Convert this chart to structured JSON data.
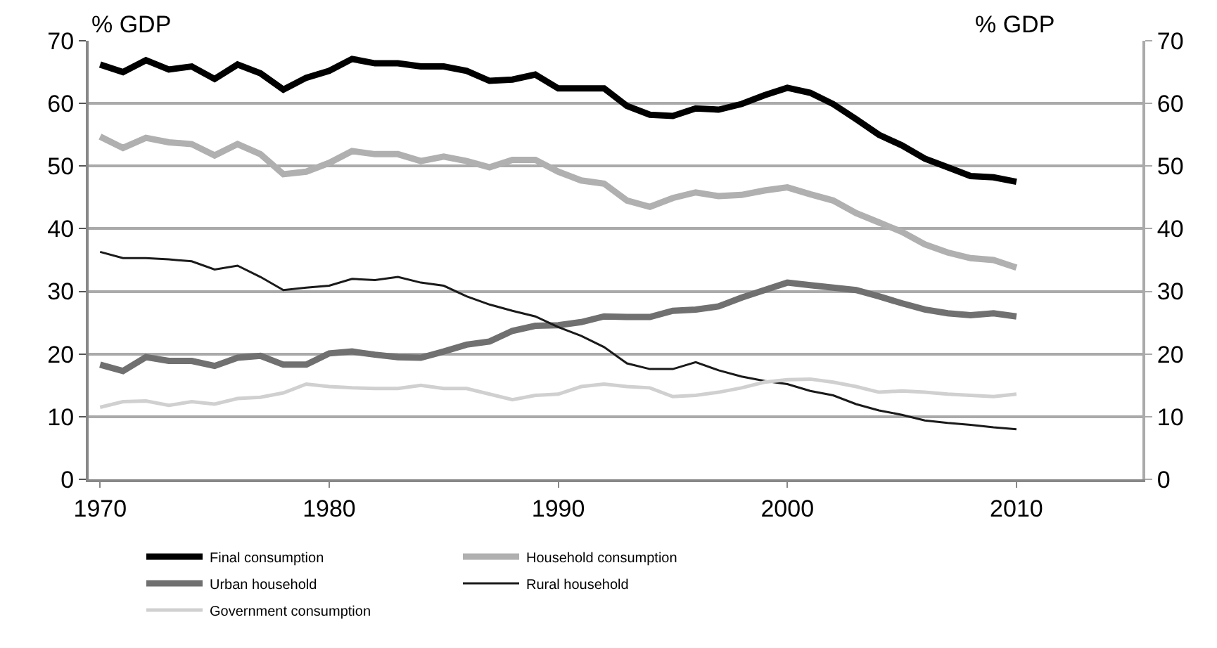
{
  "chart_data": {
    "type": "line",
    "ylabel": "% GDP",
    "y2label": "% GDP",
    "x": [
      1970,
      1971,
      1972,
      1973,
      1974,
      1975,
      1976,
      1977,
      1978,
      1979,
      1980,
      1981,
      1982,
      1983,
      1984,
      1985,
      1986,
      1987,
      1988,
      1989,
      1990,
      1991,
      1992,
      1993,
      1994,
      1995,
      1996,
      1997,
      1998,
      1999,
      2000,
      2001,
      2002,
      2003,
      2004,
      2005,
      2006,
      2007,
      2008,
      2009,
      2010
    ],
    "series": [
      {
        "name": "Final consumption",
        "color": "#000000",
        "values": [
          66.2,
          65.0,
          66.9,
          65.4,
          65.9,
          63.9,
          66.2,
          64.8,
          62.2,
          64.1,
          65.2,
          67.1,
          66.4,
          66.4,
          65.9,
          65.9,
          65.2,
          63.6,
          63.8,
          64.6,
          62.4,
          62.4,
          62.4,
          59.6,
          58.2,
          58.0,
          59.2,
          59.0,
          59.9,
          61.3,
          62.5,
          61.7,
          59.9,
          57.5,
          55.0,
          53.3,
          51.2,
          49.8,
          48.4,
          48.2,
          47.5
        ]
      },
      {
        "name": "Household consumption",
        "color": "#b0b0b0",
        "values": [
          54.7,
          52.9,
          54.5,
          53.8,
          53.5,
          51.7,
          53.5,
          51.9,
          48.7,
          49.1,
          50.5,
          52.4,
          51.9,
          51.9,
          50.8,
          51.5,
          50.8,
          49.8,
          51.0,
          51.0,
          49.1,
          47.7,
          47.2,
          44.5,
          43.5,
          44.9,
          45.8,
          45.2,
          45.4,
          46.1,
          46.6,
          45.5,
          44.5,
          42.5,
          41.0,
          39.5,
          37.5,
          36.2,
          35.3,
          35.0,
          33.8
        ]
      },
      {
        "name": "Urban household",
        "color": "#707070",
        "values": [
          18.3,
          17.3,
          19.5,
          18.9,
          18.9,
          18.1,
          19.4,
          19.7,
          18.3,
          18.3,
          20.1,
          20.4,
          19.9,
          19.5,
          19.4,
          20.4,
          21.5,
          22.0,
          23.7,
          24.5,
          24.6,
          25.1,
          26.0,
          25.9,
          25.9,
          26.9,
          27.1,
          27.6,
          29.0,
          30.2,
          31.4,
          31.0,
          30.6,
          30.2,
          29.2,
          28.1,
          27.1,
          26.5,
          26.2,
          26.5,
          26.0
        ]
      },
      {
        "name": "Rural household",
        "color": "#1a1a1a",
        "values": [
          36.3,
          35.3,
          35.3,
          35.1,
          34.8,
          33.5,
          34.1,
          32.3,
          30.2,
          30.6,
          30.9,
          32.0,
          31.8,
          32.3,
          31.4,
          30.9,
          29.2,
          27.9,
          26.9,
          26.0,
          24.3,
          22.9,
          21.1,
          18.5,
          17.6,
          17.6,
          18.7,
          17.4,
          16.4,
          15.7,
          15.2,
          14.1,
          13.4,
          12.0,
          11.0,
          10.3,
          9.4,
          9.0,
          8.7,
          8.3,
          8.0
        ]
      },
      {
        "name": "Government consumption",
        "color": "#d0d0d0",
        "values": [
          11.5,
          12.4,
          12.5,
          11.8,
          12.4,
          12.0,
          12.9,
          13.1,
          13.8,
          15.2,
          14.8,
          14.6,
          14.5,
          14.5,
          15.0,
          14.5,
          14.5,
          13.6,
          12.7,
          13.4,
          13.6,
          14.8,
          15.2,
          14.8,
          14.6,
          13.2,
          13.4,
          13.9,
          14.6,
          15.5,
          15.9,
          16.0,
          15.5,
          14.8,
          13.9,
          14.1,
          13.9,
          13.6,
          13.4,
          13.2,
          13.6
        ]
      }
    ],
    "xlim": [
      1969.5,
      2015.5
    ],
    "xticks": [
      1970,
      1980,
      1990,
      2000,
      2010
    ],
    "ylim": [
      0,
      70
    ],
    "yticks": [
      0,
      10,
      20,
      30,
      40,
      50,
      60,
      70
    ],
    "y2lim": [
      0,
      70
    ],
    "y2ticks": [
      0,
      10,
      20,
      30,
      40,
      50,
      60,
      70
    ],
    "grid": "y",
    "legend": "bottom",
    "marker": "none",
    "line_style": "solid"
  }
}
